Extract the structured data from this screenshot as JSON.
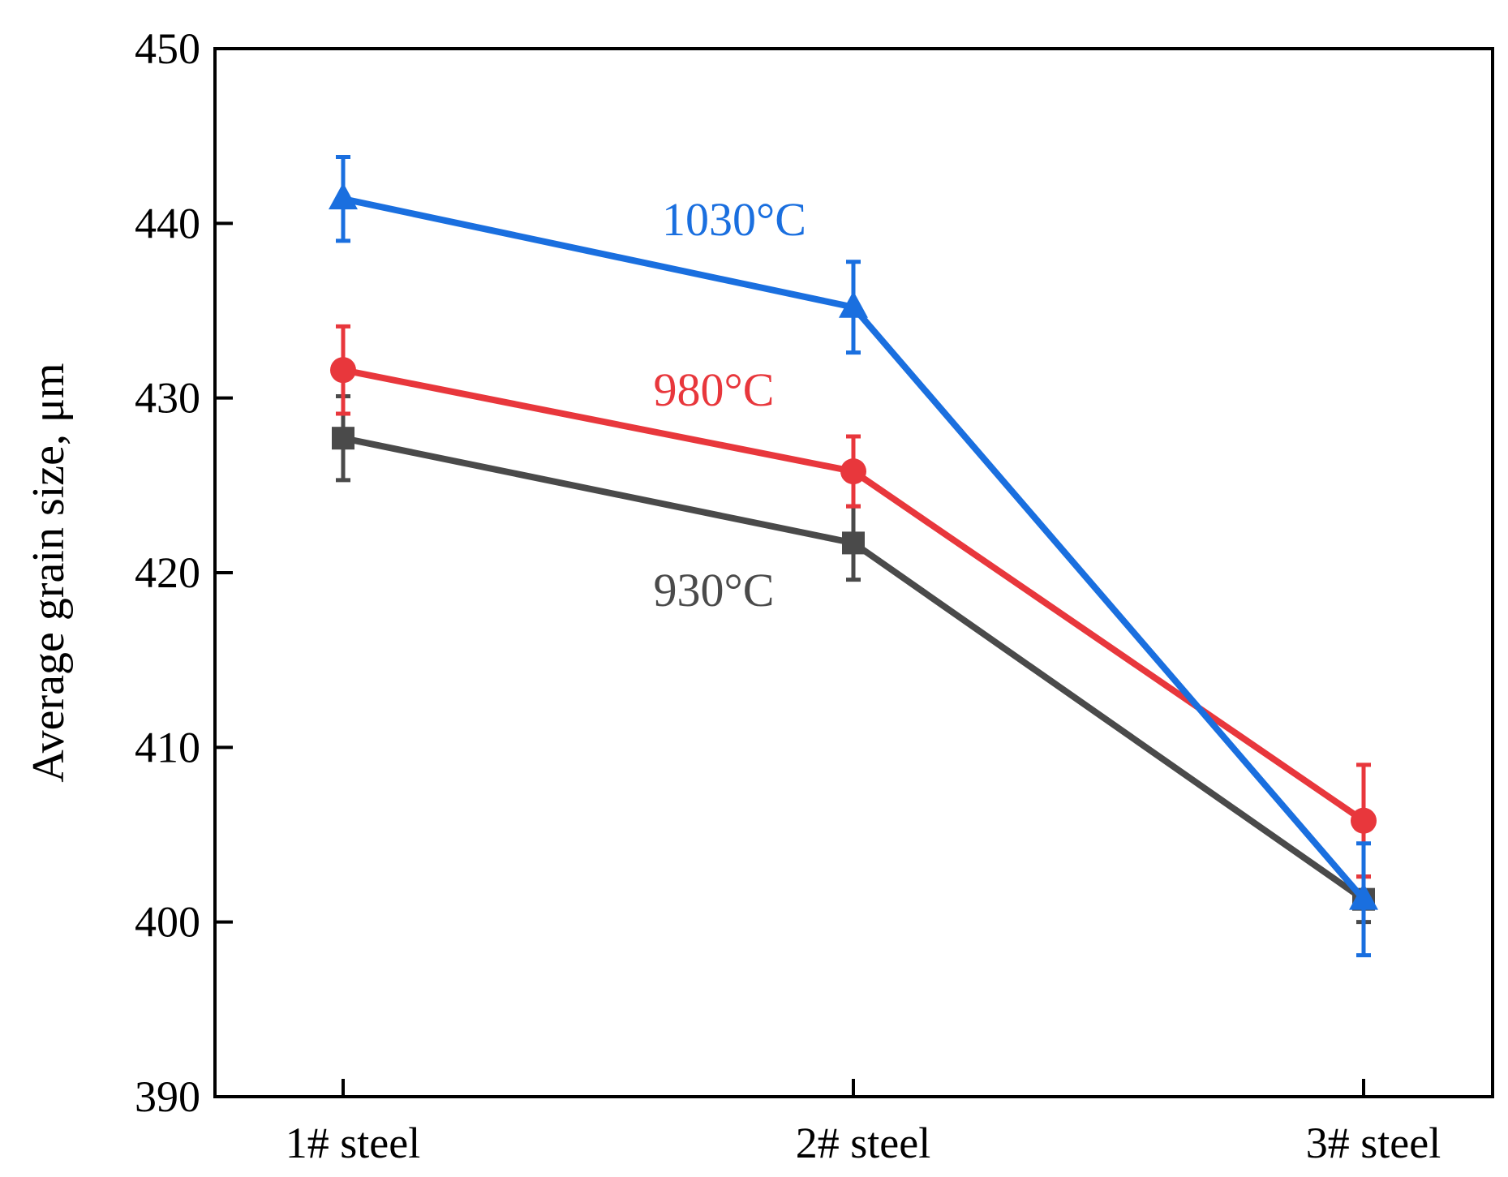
{
  "chart_data": {
    "type": "line",
    "title": "",
    "xlabel": "",
    "ylabel": "Average grain size, μm",
    "ylim": [
      390,
      450
    ],
    "yticks": [
      390,
      400,
      410,
      420,
      430,
      440,
      450
    ],
    "categories": [
      "1# steel",
      "2# steel",
      "3# steel"
    ],
    "series": [
      {
        "name": "930°C",
        "label": "930°C",
        "color": "#4a4a4a",
        "marker": "square",
        "values": [
          427.7,
          421.7,
          401.3
        ],
        "errors": [
          2.4,
          2.1,
          1.3
        ]
      },
      {
        "name": "980°C",
        "label": "980°C",
        "color": "#e8373c",
        "marker": "circle",
        "values": [
          431.6,
          425.8,
          405.8
        ],
        "errors": [
          2.5,
          2.0,
          3.2
        ]
      },
      {
        "name": "1030°C",
        "label": "1030°C",
        "color": "#1a6fdf",
        "marker": "triangle",
        "values": [
          441.4,
          435.2,
          401.3
        ],
        "errors": [
          2.4,
          2.6,
          3.2
        ]
      }
    ]
  }
}
